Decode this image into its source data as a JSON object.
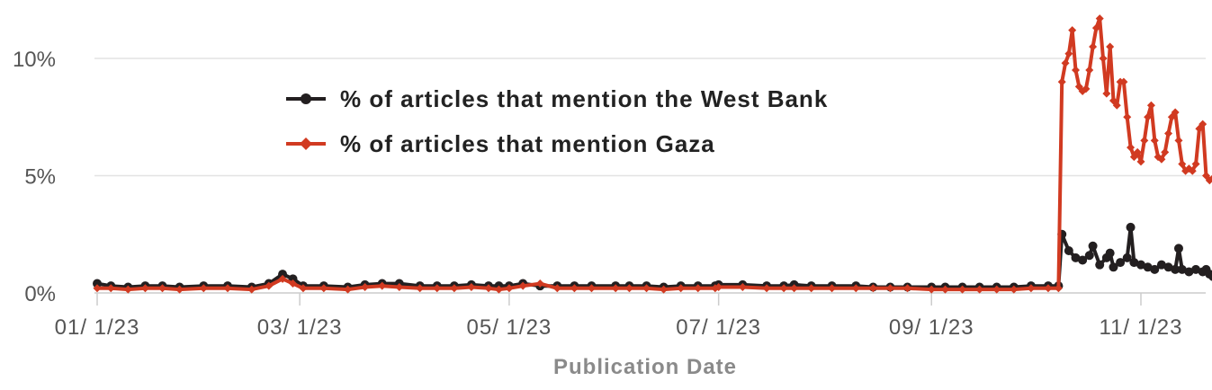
{
  "chart_data": {
    "type": "line",
    "xlabel": "Publication Date",
    "ylabel": "",
    "ylim": [
      0,
      12
    ],
    "y_ticks": [
      {
        "value": 0,
        "label": "0%"
      },
      {
        "value": 5,
        "label": "5%"
      },
      {
        "value": 10,
        "label": "10%"
      }
    ],
    "x_range": [
      "2023-01-01",
      "2023-11-25"
    ],
    "x_ticks": [
      {
        "date": "2023-01-01",
        "label": "01/ 1/23"
      },
      {
        "date": "2023-03-01",
        "label": "03/ 1/23"
      },
      {
        "date": "2023-05-01",
        "label": "05/ 1/23"
      },
      {
        "date": "2023-07-01",
        "label": "07/ 1/23"
      },
      {
        "date": "2023-09-01",
        "label": "09/ 1/23"
      },
      {
        "date": "2023-11-01",
        "label": "11/ 1/23"
      }
    ],
    "grid": true,
    "legend_position": "top-left",
    "series": [
      {
        "name": "% of articles that mention the West Bank",
        "color": "#231f20",
        "marker": "circle",
        "points": [
          [
            "2023-01-01",
            0.4
          ],
          [
            "2023-01-05",
            0.3
          ],
          [
            "2023-01-10",
            0.25
          ],
          [
            "2023-01-15",
            0.3
          ],
          [
            "2023-01-20",
            0.3
          ],
          [
            "2023-01-25",
            0.25
          ],
          [
            "2023-02-01",
            0.3
          ],
          [
            "2023-02-08",
            0.3
          ],
          [
            "2023-02-15",
            0.25
          ],
          [
            "2023-02-20",
            0.4
          ],
          [
            "2023-02-24",
            0.8
          ],
          [
            "2023-02-27",
            0.6
          ],
          [
            "2023-03-02",
            0.3
          ],
          [
            "2023-03-08",
            0.3
          ],
          [
            "2023-03-15",
            0.25
          ],
          [
            "2023-03-20",
            0.35
          ],
          [
            "2023-03-25",
            0.4
          ],
          [
            "2023-03-30",
            0.4
          ],
          [
            "2023-04-05",
            0.3
          ],
          [
            "2023-04-10",
            0.3
          ],
          [
            "2023-04-15",
            0.3
          ],
          [
            "2023-04-20",
            0.35
          ],
          [
            "2023-04-25",
            0.3
          ],
          [
            "2023-04-28",
            0.3
          ],
          [
            "2023-05-01",
            0.3
          ],
          [
            "2023-05-05",
            0.4
          ],
          [
            "2023-05-10",
            0.3
          ],
          [
            "2023-05-15",
            0.3
          ],
          [
            "2023-05-20",
            0.3
          ],
          [
            "2023-05-25",
            0.3
          ],
          [
            "2023-06-01",
            0.3
          ],
          [
            "2023-06-05",
            0.3
          ],
          [
            "2023-06-10",
            0.3
          ],
          [
            "2023-06-15",
            0.25
          ],
          [
            "2023-06-20",
            0.3
          ],
          [
            "2023-06-25",
            0.3
          ],
          [
            "2023-06-30",
            0.3
          ],
          [
            "2023-07-01",
            0.35
          ],
          [
            "2023-07-08",
            0.35
          ],
          [
            "2023-07-15",
            0.3
          ],
          [
            "2023-07-20",
            0.3
          ],
          [
            "2023-07-23",
            0.35
          ],
          [
            "2023-07-28",
            0.3
          ],
          [
            "2023-08-03",
            0.3
          ],
          [
            "2023-08-10",
            0.3
          ],
          [
            "2023-08-15",
            0.25
          ],
          [
            "2023-08-20",
            0.25
          ],
          [
            "2023-08-25",
            0.25
          ],
          [
            "2023-09-01",
            0.25
          ],
          [
            "2023-09-05",
            0.25
          ],
          [
            "2023-09-10",
            0.25
          ],
          [
            "2023-09-15",
            0.25
          ],
          [
            "2023-09-20",
            0.25
          ],
          [
            "2023-09-25",
            0.25
          ],
          [
            "2023-09-30",
            0.3
          ],
          [
            "2023-10-05",
            0.3
          ],
          [
            "2023-10-08",
            0.3
          ],
          [
            "2023-10-09",
            2.5
          ],
          [
            "2023-10-11",
            1.8
          ],
          [
            "2023-10-13",
            1.5
          ],
          [
            "2023-10-15",
            1.4
          ],
          [
            "2023-10-17",
            1.6
          ],
          [
            "2023-10-18",
            2.0
          ],
          [
            "2023-10-20",
            1.2
          ],
          [
            "2023-10-22",
            1.5
          ],
          [
            "2023-10-23",
            1.7
          ],
          [
            "2023-10-24",
            1.1
          ],
          [
            "2023-10-26",
            1.3
          ],
          [
            "2023-10-28",
            1.5
          ],
          [
            "2023-10-29",
            2.8
          ],
          [
            "2023-10-30",
            1.3
          ],
          [
            "2023-11-01",
            1.2
          ],
          [
            "2023-11-03",
            1.1
          ],
          [
            "2023-11-05",
            1.0
          ],
          [
            "2023-11-07",
            1.2
          ],
          [
            "2023-11-09",
            1.1
          ],
          [
            "2023-11-11",
            1.0
          ],
          [
            "2023-11-12",
            1.9
          ],
          [
            "2023-11-13",
            1.0
          ],
          [
            "2023-11-15",
            0.9
          ],
          [
            "2023-11-17",
            1.0
          ],
          [
            "2023-11-19",
            0.9
          ],
          [
            "2023-11-20",
            1.0
          ],
          [
            "2023-11-21",
            0.8
          ],
          [
            "2023-11-22",
            0.7
          ],
          [
            "2023-11-23",
            0.8
          ],
          [
            "2023-11-24",
            1.0
          ],
          [
            "2023-11-25",
            1.0
          ]
        ]
      },
      {
        "name": "% of articles that mention Gaza",
        "color": "#d13a21",
        "marker": "diamond",
        "points": [
          [
            "2023-01-01",
            0.2
          ],
          [
            "2023-01-05",
            0.2
          ],
          [
            "2023-01-10",
            0.15
          ],
          [
            "2023-01-15",
            0.2
          ],
          [
            "2023-01-20",
            0.2
          ],
          [
            "2023-01-25",
            0.15
          ],
          [
            "2023-02-01",
            0.2
          ],
          [
            "2023-02-08",
            0.2
          ],
          [
            "2023-02-15",
            0.15
          ],
          [
            "2023-02-20",
            0.3
          ],
          [
            "2023-02-24",
            0.6
          ],
          [
            "2023-02-27",
            0.4
          ],
          [
            "2023-03-02",
            0.2
          ],
          [
            "2023-03-08",
            0.2
          ],
          [
            "2023-03-15",
            0.15
          ],
          [
            "2023-03-20",
            0.25
          ],
          [
            "2023-03-25",
            0.3
          ],
          [
            "2023-03-30",
            0.25
          ],
          [
            "2023-04-05",
            0.2
          ],
          [
            "2023-04-10",
            0.2
          ],
          [
            "2023-04-15",
            0.2
          ],
          [
            "2023-04-20",
            0.25
          ],
          [
            "2023-04-25",
            0.2
          ],
          [
            "2023-04-28",
            0.15
          ],
          [
            "2023-05-01",
            0.2
          ],
          [
            "2023-05-05",
            0.3
          ],
          [
            "2023-05-10",
            0.4
          ],
          [
            "2023-05-15",
            0.2
          ],
          [
            "2023-05-20",
            0.2
          ],
          [
            "2023-05-25",
            0.2
          ],
          [
            "2023-06-01",
            0.2
          ],
          [
            "2023-06-05",
            0.2
          ],
          [
            "2023-06-10",
            0.2
          ],
          [
            "2023-06-15",
            0.15
          ],
          [
            "2023-06-20",
            0.2
          ],
          [
            "2023-06-25",
            0.2
          ],
          [
            "2023-06-30",
            0.2
          ],
          [
            "2023-07-01",
            0.25
          ],
          [
            "2023-07-08",
            0.25
          ],
          [
            "2023-07-15",
            0.2
          ],
          [
            "2023-07-20",
            0.2
          ],
          [
            "2023-07-23",
            0.2
          ],
          [
            "2023-07-28",
            0.2
          ],
          [
            "2023-08-03",
            0.2
          ],
          [
            "2023-08-10",
            0.2
          ],
          [
            "2023-08-15",
            0.2
          ],
          [
            "2023-08-20",
            0.2
          ],
          [
            "2023-08-25",
            0.2
          ],
          [
            "2023-09-01",
            0.15
          ],
          [
            "2023-09-05",
            0.15
          ],
          [
            "2023-09-10",
            0.15
          ],
          [
            "2023-09-15",
            0.15
          ],
          [
            "2023-09-20",
            0.15
          ],
          [
            "2023-09-25",
            0.15
          ],
          [
            "2023-09-30",
            0.2
          ],
          [
            "2023-10-05",
            0.2
          ],
          [
            "2023-10-08",
            0.2
          ],
          [
            "2023-10-09",
            9.0
          ],
          [
            "2023-10-10",
            9.8
          ],
          [
            "2023-10-11",
            10.2
          ],
          [
            "2023-10-12",
            11.2
          ],
          [
            "2023-10-13",
            9.5
          ],
          [
            "2023-10-14",
            8.8
          ],
          [
            "2023-10-15",
            8.6
          ],
          [
            "2023-10-16",
            8.7
          ],
          [
            "2023-10-17",
            9.5
          ],
          [
            "2023-10-18",
            10.5
          ],
          [
            "2023-10-19",
            11.3
          ],
          [
            "2023-10-20",
            11.7
          ],
          [
            "2023-10-21",
            10.0
          ],
          [
            "2023-10-22",
            8.5
          ],
          [
            "2023-10-23",
            10.5
          ],
          [
            "2023-10-24",
            8.2
          ],
          [
            "2023-10-25",
            8.0
          ],
          [
            "2023-10-26",
            9.0
          ],
          [
            "2023-10-27",
            9.0
          ],
          [
            "2023-10-28",
            7.5
          ],
          [
            "2023-10-29",
            6.2
          ],
          [
            "2023-10-30",
            5.8
          ],
          [
            "2023-10-31",
            6.0
          ],
          [
            "2023-11-01",
            5.6
          ],
          [
            "2023-11-02",
            6.5
          ],
          [
            "2023-11-03",
            7.5
          ],
          [
            "2023-11-04",
            8.0
          ],
          [
            "2023-11-05",
            6.5
          ],
          [
            "2023-11-06",
            5.8
          ],
          [
            "2023-11-07",
            5.7
          ],
          [
            "2023-11-08",
            6.0
          ],
          [
            "2023-11-09",
            6.8
          ],
          [
            "2023-11-10",
            7.5
          ],
          [
            "2023-11-11",
            7.7
          ],
          [
            "2023-11-12",
            6.5
          ],
          [
            "2023-11-13",
            5.5
          ],
          [
            "2023-11-14",
            5.2
          ],
          [
            "2023-11-15",
            5.3
          ],
          [
            "2023-11-16",
            5.2
          ],
          [
            "2023-11-17",
            5.5
          ],
          [
            "2023-11-18",
            7.0
          ],
          [
            "2023-11-19",
            7.2
          ],
          [
            "2023-11-20",
            5.0
          ],
          [
            "2023-11-21",
            4.8
          ],
          [
            "2023-11-22",
            4.9
          ],
          [
            "2023-11-23",
            4.8
          ],
          [
            "2023-11-24",
            4.5
          ],
          [
            "2023-11-25",
            5.5
          ]
        ]
      }
    ]
  }
}
